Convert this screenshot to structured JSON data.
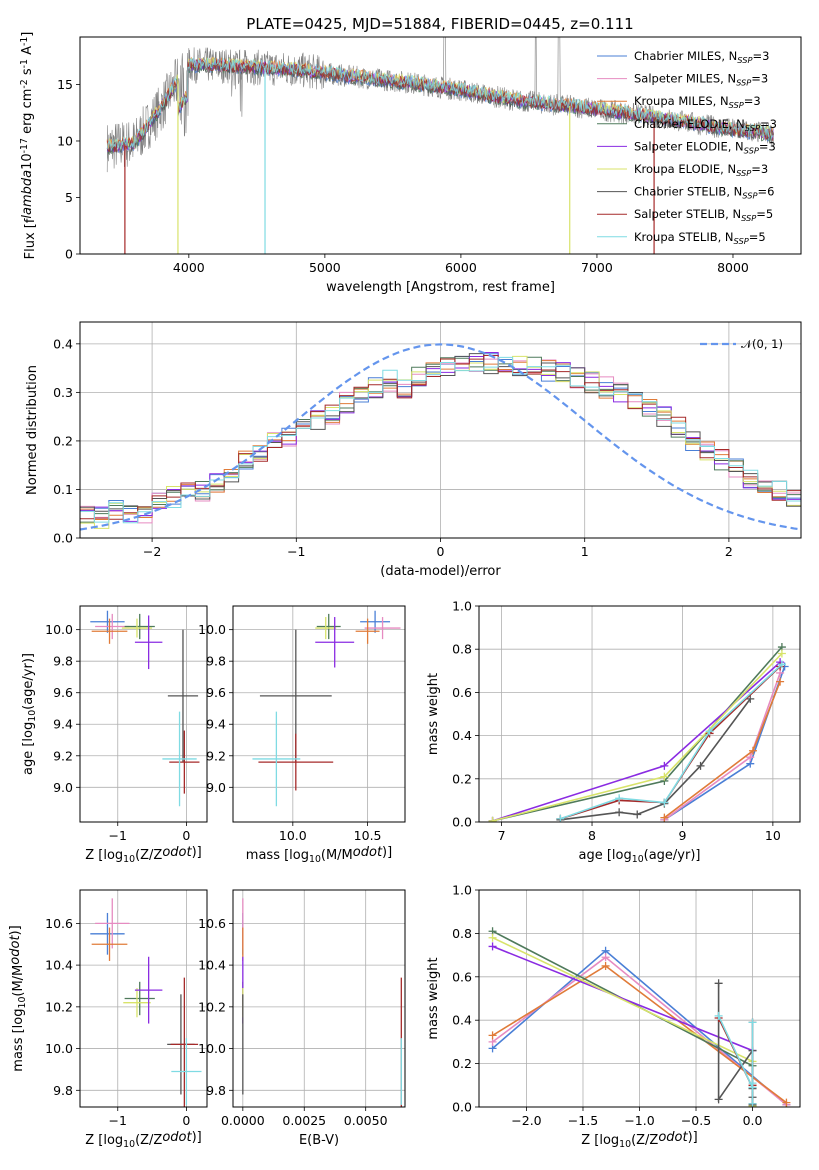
{
  "figure": {
    "title": "PLATE=0425, MJD=51884, FIBERID=0445, z=0.111"
  },
  "colors": {
    "Chabrier MILES": "#4a7fd6",
    "Salpeter MILES": "#e68bc1",
    "Kroupa MILES": "#e07b39",
    "Chabrier ELODIE": "#4f7a5b",
    "Salpeter ELODIE": "#8a2be2",
    "Kroupa ELODIE": "#d8e36a",
    "Chabrier STELIB": "#555555",
    "Salpeter STELIB": "#a52a2a",
    "Kroupa STELIB": "#7fdbe3",
    "data": "#808080",
    "normal": "#6495ed"
  },
  "chart_data": [
    {
      "id": "spectrum",
      "type": "line",
      "xlabel": "wavelength [Angstrom, rest frame]",
      "ylabel": "Flux [f$_\\lambda$10$^{-17}$ erg cm$^{-2}$ s$^{-1}$ A$^{-1}$]",
      "xlim": [
        3200,
        8500
      ],
      "ylim": [
        0,
        19.2
      ],
      "xticks": [
        4000,
        5000,
        6000,
        7000,
        8000
      ],
      "yticks": [
        0,
        5,
        10,
        15
      ],
      "legend_position": "top-right",
      "legend": [
        "Chabrier MILES, N_SSP=3",
        "Salpeter MILES, N_SSP=3",
        "Kroupa MILES, N_SSP=3",
        "Chabrier ELODIE, N_SSP=3",
        "Salpeter ELODIE, N_SSP=3",
        "Kroupa ELODIE, N_SSP=3",
        "Chabrier STELIB, N_SSP=6",
        "Salpeter STELIB, N_SSP=5",
        "Kroupa STELIB, N_SSP=5"
      ],
      "legend_keys": [
        "Chabrier MILES",
        "Salpeter MILES",
        "Kroupa MILES",
        "Chabrier ELODIE",
        "Salpeter ELODIE",
        "Kroupa ELODIE",
        "Chabrier STELIB",
        "Salpeter STELIB",
        "Kroupa STELIB"
      ],
      "continuum": {
        "x": [
          3400,
          3600,
          3800,
          3900,
          4000,
          4200,
          4500,
          4800,
          5200,
          5600,
          6000,
          6400,
          6800,
          7200,
          7600,
          8000,
          8300
        ],
        "y": [
          9.5,
          9.8,
          13.0,
          15.0,
          16.7,
          16.7,
          16.5,
          16.3,
          15.7,
          15.2,
          14.5,
          13.6,
          13.1,
          12.5,
          11.8,
          11.0,
          10.6
        ]
      },
      "model_drop_lines": [
        {
          "series": "Salpeter STELIB",
          "x": 3530
        },
        {
          "series": "Kroupa ELODIE",
          "x": 3920
        },
        {
          "series": "Kroupa STELIB",
          "x": 4560
        },
        {
          "series": "Kroupa ELODIE",
          "x": 6800
        },
        {
          "series": "Salpeter STELIB",
          "x": 7420
        }
      ]
    },
    {
      "id": "residuals",
      "type": "histogram",
      "xlabel": "(data-model)/error",
      "ylabel": "Normed distribution",
      "xlim": [
        -2.5,
        2.5
      ],
      "ylim": [
        0,
        0.445
      ],
      "xticks": [
        -2,
        -1,
        0,
        1,
        2
      ],
      "yticks": [
        0.0,
        0.1,
        0.2,
        0.3,
        0.4
      ],
      "bin_width": 0.1,
      "bin_start": -2.5,
      "base_profile": [
        0.045,
        0.042,
        0.058,
        0.052,
        0.048,
        0.072,
        0.085,
        0.098,
        0.095,
        0.115,
        0.135,
        0.16,
        0.175,
        0.2,
        0.21,
        0.225,
        0.24,
        0.255,
        0.28,
        0.3,
        0.31,
        0.325,
        0.305,
        0.33,
        0.345,
        0.35,
        0.355,
        0.36,
        0.36,
        0.355,
        0.355,
        0.35,
        0.345,
        0.34,
        0.33,
        0.32,
        0.31,
        0.3,
        0.285,
        0.265,
        0.25,
        0.23,
        0.2,
        0.18,
        0.16,
        0.145,
        0.125,
        0.11,
        0.095,
        0.085
      ],
      "series_keys": [
        "Chabrier MILES",
        "Salpeter MILES",
        "Kroupa MILES",
        "Chabrier ELODIE",
        "Salpeter ELODIE",
        "Kroupa ELODIE",
        "Chabrier STELIB",
        "Salpeter STELIB",
        "Kroupa STELIB"
      ],
      "normal_curve": {
        "label": "$\\mathcal{N}(0,1)$",
        "mean": 0,
        "sigma": 1
      }
    },
    {
      "id": "age_vs_Z",
      "type": "errorbar",
      "xlabel": "Z [log$_{10}$(Z/Z$_\\odot$)]",
      "ylabel": "age  [log$_{10}$(age/yr)]",
      "xlim": [
        -1.55,
        0.3
      ],
      "ylim": [
        8.78,
        10.15
      ],
      "xticks": [
        -1,
        0
      ],
      "yticks": [
        9.0,
        9.2,
        9.4,
        9.6,
        9.8,
        10.0
      ],
      "points": [
        {
          "series": "Chabrier MILES",
          "x": -1.15,
          "y": 10.05,
          "xerr": 0.25,
          "yerr": 0.07
        },
        {
          "series": "Salpeter MILES",
          "x": -1.08,
          "y": 10.02,
          "xerr": 0.25,
          "yerr": 0.08
        },
        {
          "series": "Kroupa MILES",
          "x": -1.12,
          "y": 9.99,
          "xerr": 0.26,
          "yerr": 0.08
        },
        {
          "series": "Chabrier ELODIE",
          "x": -0.68,
          "y": 10.02,
          "xerr": 0.22,
          "yerr": 0.08
        },
        {
          "series": "Kroupa ELODIE",
          "x": -0.72,
          "y": 10.01,
          "xerr": 0.22,
          "yerr": 0.06
        },
        {
          "series": "Salpeter ELODIE",
          "x": -0.55,
          "y": 9.92,
          "xerr": 0.2,
          "yerr": 0.17
        },
        {
          "series": "Chabrier STELIB",
          "x": -0.05,
          "y": 9.58,
          "xerr": 0.22,
          "yerr": 0.42
        },
        {
          "series": "Salpeter STELIB",
          "x": -0.03,
          "y": 9.16,
          "xerr": 0.22,
          "yerr": 0.2
        },
        {
          "series": "Kroupa STELIB",
          "x": -0.1,
          "y": 9.18,
          "xerr": 0.25,
          "yerr": 0.3
        }
      ]
    },
    {
      "id": "age_vs_mass",
      "type": "errorbar",
      "xlabel": "mass [log$_{10}$(M/M$_\\odot$)]",
      "xlim": [
        9.6,
        10.75
      ],
      "ylim": [
        8.78,
        10.15
      ],
      "xticks": [
        10.0,
        10.5
      ],
      "yticks": [
        9.0,
        9.2,
        9.4,
        9.6,
        9.8,
        10.0
      ],
      "points": [
        {
          "series": "Chabrier MILES",
          "x": 10.55,
          "y": 10.05,
          "xerr": 0.1,
          "yerr": 0.07
        },
        {
          "series": "Salpeter MILES",
          "x": 10.6,
          "y": 10.01,
          "xerr": 0.12,
          "yerr": 0.07
        },
        {
          "series": "Kroupa MILES",
          "x": 10.5,
          "y": 9.99,
          "xerr": 0.08,
          "yerr": 0.08
        },
        {
          "series": "Chabrier ELODIE",
          "x": 10.24,
          "y": 10.02,
          "xerr": 0.08,
          "yerr": 0.08
        },
        {
          "series": "Kroupa ELODIE",
          "x": 10.22,
          "y": 10.01,
          "xerr": 0.07,
          "yerr": 0.07
        },
        {
          "series": "Salpeter ELODIE",
          "x": 10.28,
          "y": 9.92,
          "xerr": 0.13,
          "yerr": 0.16
        },
        {
          "series": "Chabrier STELIB",
          "x": 10.02,
          "y": 9.58,
          "xerr": 0.24,
          "yerr": 0.42
        },
        {
          "series": "Salpeter STELIB",
          "x": 10.02,
          "y": 9.16,
          "xerr": 0.25,
          "yerr": 0.18
        },
        {
          "series": "Kroupa STELIB",
          "x": 9.89,
          "y": 9.18,
          "xerr": 0.16,
          "yerr": 0.3
        }
      ]
    },
    {
      "id": "massweight_vs_age",
      "type": "line",
      "xlabel": "age  [log$_{10}$(age/yr)]",
      "ylabel": "mass weight",
      "xlim": [
        6.75,
        10.3
      ],
      "ylim": [
        0,
        1.0
      ],
      "xticks": [
        7,
        8,
        9,
        10
      ],
      "yticks": [
        0.0,
        0.2,
        0.4,
        0.6,
        0.8,
        1.0
      ],
      "series": [
        {
          "name": "Chabrier MILES",
          "x": [
            8.8,
            9.75,
            10.13
          ],
          "y": [
            0.01,
            0.27,
            0.72
          ]
        },
        {
          "name": "Salpeter MILES",
          "x": [
            8.8,
            9.75,
            10.08
          ],
          "y": [
            0.01,
            0.3,
            0.69
          ]
        },
        {
          "name": "Kroupa MILES",
          "x": [
            8.8,
            9.78,
            10.08
          ],
          "y": [
            0.02,
            0.33,
            0.65
          ]
        },
        {
          "name": "Chabrier ELODIE",
          "x": [
            6.9,
            8.8,
            10.1
          ],
          "y": [
            0.005,
            0.19,
            0.81
          ]
        },
        {
          "name": "Salpeter ELODIE",
          "x": [
            6.9,
            8.8,
            10.08
          ],
          "y": [
            0.005,
            0.26,
            0.74
          ]
        },
        {
          "name": "Kroupa ELODIE",
          "x": [
            6.9,
            8.8,
            10.1
          ],
          "y": [
            0.005,
            0.21,
            0.78
          ]
        },
        {
          "name": "Chabrier STELIB",
          "x": [
            7.65,
            8.3,
            8.5,
            8.8,
            9.2,
            9.75
          ],
          "y": [
            0.01,
            0.045,
            0.035,
            0.085,
            0.26,
            0.57
          ]
        },
        {
          "name": "Salpeter STELIB",
          "x": [
            7.65,
            8.3,
            8.8,
            9.3,
            10.08
          ],
          "y": [
            0.015,
            0.1,
            0.09,
            0.41,
            0.72
          ]
        },
        {
          "name": "Kroupa STELIB",
          "x": [
            7.65,
            8.3,
            8.8,
            9.3,
            10.1
          ],
          "y": [
            0.015,
            0.11,
            0.09,
            0.42,
            0.73
          ]
        }
      ]
    },
    {
      "id": "mass_vs_Z",
      "type": "errorbar",
      "xlabel": "Z [log$_{10}$(Z/Z$_\\odot$)]",
      "ylabel": "mass [log$_{10}$(M/M$_\\odot$)]",
      "xlim": [
        -1.55,
        0.3
      ],
      "ylim": [
        9.72,
        10.76
      ],
      "xticks": [
        -1,
        0
      ],
      "yticks": [
        9.8,
        10.0,
        10.2,
        10.4,
        10.6
      ],
      "points": [
        {
          "series": "Chabrier MILES",
          "x": -1.15,
          "y": 10.55,
          "xerr": 0.25,
          "yerr": 0.1
        },
        {
          "series": "Salpeter MILES",
          "x": -1.08,
          "y": 10.6,
          "xerr": 0.25,
          "yerr": 0.12
        },
        {
          "series": "Kroupa MILES",
          "x": -1.12,
          "y": 10.5,
          "xerr": 0.26,
          "yerr": 0.08
        },
        {
          "series": "Chabrier ELODIE",
          "x": -0.68,
          "y": 10.24,
          "xerr": 0.22,
          "yerr": 0.08
        },
        {
          "series": "Kroupa ELODIE",
          "x": -0.72,
          "y": 10.22,
          "xerr": 0.2,
          "yerr": 0.07
        },
        {
          "series": "Salpeter ELODIE",
          "x": -0.55,
          "y": 10.28,
          "xerr": 0.2,
          "yerr": 0.16
        },
        {
          "series": "Chabrier STELIB",
          "x": -0.08,
          "y": 10.02,
          "xerr": 0.2,
          "yerr": 0.24
        },
        {
          "series": "Salpeter STELIB",
          "x": -0.03,
          "y": 10.02,
          "xerr": 0.2,
          "yerr": 0.32
        },
        {
          "series": "Kroupa STELIB",
          "x": 0.0,
          "y": 9.89,
          "xerr": 0.22,
          "yerr": 0.16
        }
      ]
    },
    {
      "id": "mass_vs_EBV",
      "type": "errorbar",
      "xlabel": "E(B-V)",
      "xlim": [
        -0.0004,
        0.0066
      ],
      "ylim": [
        9.72,
        10.76
      ],
      "xticks": [
        0.0,
        0.0025,
        0.005
      ],
      "xticklabels": [
        "0.0000",
        "0.0025",
        "0.0050"
      ],
      "yticks": [
        9.8,
        10.0,
        10.2,
        10.4,
        10.6
      ],
      "points": [
        {
          "series": "Chabrier MILES",
          "x": 0.0,
          "y": 10.55,
          "xerr": 0,
          "yerr": 0.1
        },
        {
          "series": "Salpeter MILES",
          "x": 0.0,
          "y": 10.6,
          "xerr": 0,
          "yerr": 0.12
        },
        {
          "series": "Kroupa MILES",
          "x": 0.0,
          "y": 10.5,
          "xerr": 0,
          "yerr": 0.08
        },
        {
          "series": "Chabrier ELODIE",
          "x": 0.0,
          "y": 10.24,
          "xerr": 0,
          "yerr": 0.08
        },
        {
          "series": "Salpeter ELODIE",
          "x": 0.0,
          "y": 10.28,
          "xerr": 0,
          "yerr": 0.16
        },
        {
          "series": "Kroupa ELODIE",
          "x": 0.0,
          "y": 10.22,
          "xerr": 0,
          "yerr": 0.07
        },
        {
          "series": "Chabrier STELIB",
          "x": 0.0,
          "y": 10.02,
          "xerr": 0,
          "yerr": 0.24
        },
        {
          "series": "Salpeter STELIB",
          "x": 0.00645,
          "y": 10.02,
          "xerr": 0,
          "yerr": 0.32
        },
        {
          "series": "Kroupa STELIB",
          "x": 0.00645,
          "y": 9.89,
          "xerr": 0,
          "yerr": 0.16
        }
      ]
    },
    {
      "id": "massweight_vs_Z",
      "type": "line",
      "xlabel": "Z [log$_{10}$(Z/Z$_\\odot$)]",
      "ylabel": "mass weight",
      "xlim": [
        -2.42,
        0.42
      ],
      "ylim": [
        0,
        1.0
      ],
      "xticks": [
        -2.0,
        -1.5,
        -1.0,
        -0.5,
        0.0
      ],
      "yticks": [
        0.0,
        0.2,
        0.4,
        0.6,
        0.8,
        1.0
      ],
      "series": [
        {
          "name": "Chabrier MILES",
          "x": [
            -2.3,
            -1.3,
            0.3
          ],
          "y": [
            0.27,
            0.72,
            0.01
          ]
        },
        {
          "name": "Salpeter MILES",
          "x": [
            -2.3,
            -1.3,
            0.3
          ],
          "y": [
            0.3,
            0.69,
            0.01
          ]
        },
        {
          "name": "Kroupa MILES",
          "x": [
            -2.3,
            -1.3,
            0.3
          ],
          "y": [
            0.33,
            0.65,
            0.02
          ]
        },
        {
          "name": "Chabrier ELODIE",
          "x": [
            -2.3,
            0.0,
            0.0
          ],
          "y": [
            0.81,
            0.19,
            0.005
          ]
        },
        {
          "name": "Salpeter ELODIE",
          "x": [
            -2.3,
            0.0,
            0.0
          ],
          "y": [
            0.74,
            0.26,
            0.005
          ]
        },
        {
          "name": "Kroupa ELODIE",
          "x": [
            -2.3,
            0.0,
            0.0
          ],
          "y": [
            0.78,
            0.21,
            0.005
          ]
        },
        {
          "name": "Chabrier STELIB",
          "x": [
            -0.3,
            -0.3,
            0.0,
            0.0,
            0.0,
            0.0
          ],
          "y": [
            0.57,
            0.035,
            0.26,
            0.085,
            0.045,
            0.01
          ]
        },
        {
          "name": "Salpeter STELIB",
          "x": [
            -0.3,
            0.0,
            0.0,
            0.0,
            0.0
          ],
          "y": [
            0.41,
            0.09,
            0.39,
            0.1,
            0.015
          ]
        },
        {
          "name": "Kroupa STELIB",
          "x": [
            -0.3,
            0.0,
            0.0,
            0.0,
            0.0
          ],
          "y": [
            0.42,
            0.09,
            0.39,
            0.11,
            0.015
          ]
        }
      ]
    }
  ]
}
